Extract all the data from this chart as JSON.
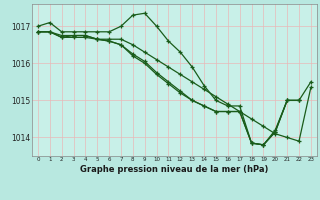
{
  "background_color": "#b8e8e0",
  "plot_bg_color": "#c8f0e8",
  "grid_color": "#e8b8b8",
  "line_color": "#1a5c1a",
  "xlabel": "Graphe pression niveau de la mer (hPa)",
  "xlim": [
    -0.5,
    23.5
  ],
  "ylim": [
    1013.5,
    1017.6
  ],
  "yticks": [
    1014,
    1015,
    1016,
    1017
  ],
  "xticks": [
    0,
    1,
    2,
    3,
    4,
    5,
    6,
    7,
    8,
    9,
    10,
    11,
    12,
    13,
    14,
    15,
    16,
    17,
    18,
    19,
    20,
    21,
    22,
    23
  ],
  "series": [
    [
      1017.0,
      1017.1,
      1016.85,
      1016.85,
      1016.85,
      1016.85,
      1016.85,
      1017.0,
      1017.3,
      1017.35,
      1017.0,
      1016.6,
      1016.3,
      1015.9,
      1015.4,
      1015.0,
      1014.85,
      1014.85,
      1013.85,
      1013.8,
      1014.2,
      1015.0,
      1015.0,
      1015.5
    ],
    [
      1016.85,
      1016.85,
      1016.7,
      1016.7,
      1016.7,
      1016.65,
      1016.65,
      1016.65,
      1016.5,
      1016.3,
      1016.1,
      1015.9,
      1015.7,
      1015.5,
      1015.3,
      1015.1,
      1014.9,
      1014.7,
      1014.5,
      1014.3,
      1014.1,
      1014.0,
      1013.9,
      1015.35
    ],
    [
      1016.85,
      1016.85,
      1016.75,
      1016.75,
      1016.75,
      1016.65,
      1016.6,
      1016.5,
      1016.25,
      1016.05,
      1015.75,
      1015.5,
      1015.25,
      1015.0,
      1014.85,
      1014.7,
      1014.7,
      1014.7,
      1013.85,
      1013.8,
      1014.15,
      1015.0,
      1015.0,
      null
    ],
    [
      1016.85,
      1016.85,
      1016.7,
      1016.75,
      1016.75,
      1016.65,
      1016.6,
      1016.5,
      1016.2,
      1016.0,
      1015.7,
      1015.45,
      1015.2,
      1015.0,
      1014.85,
      1014.7,
      1014.7,
      1014.7,
      1013.85,
      1013.8,
      1014.15,
      1015.0,
      1015.0,
      null
    ]
  ]
}
